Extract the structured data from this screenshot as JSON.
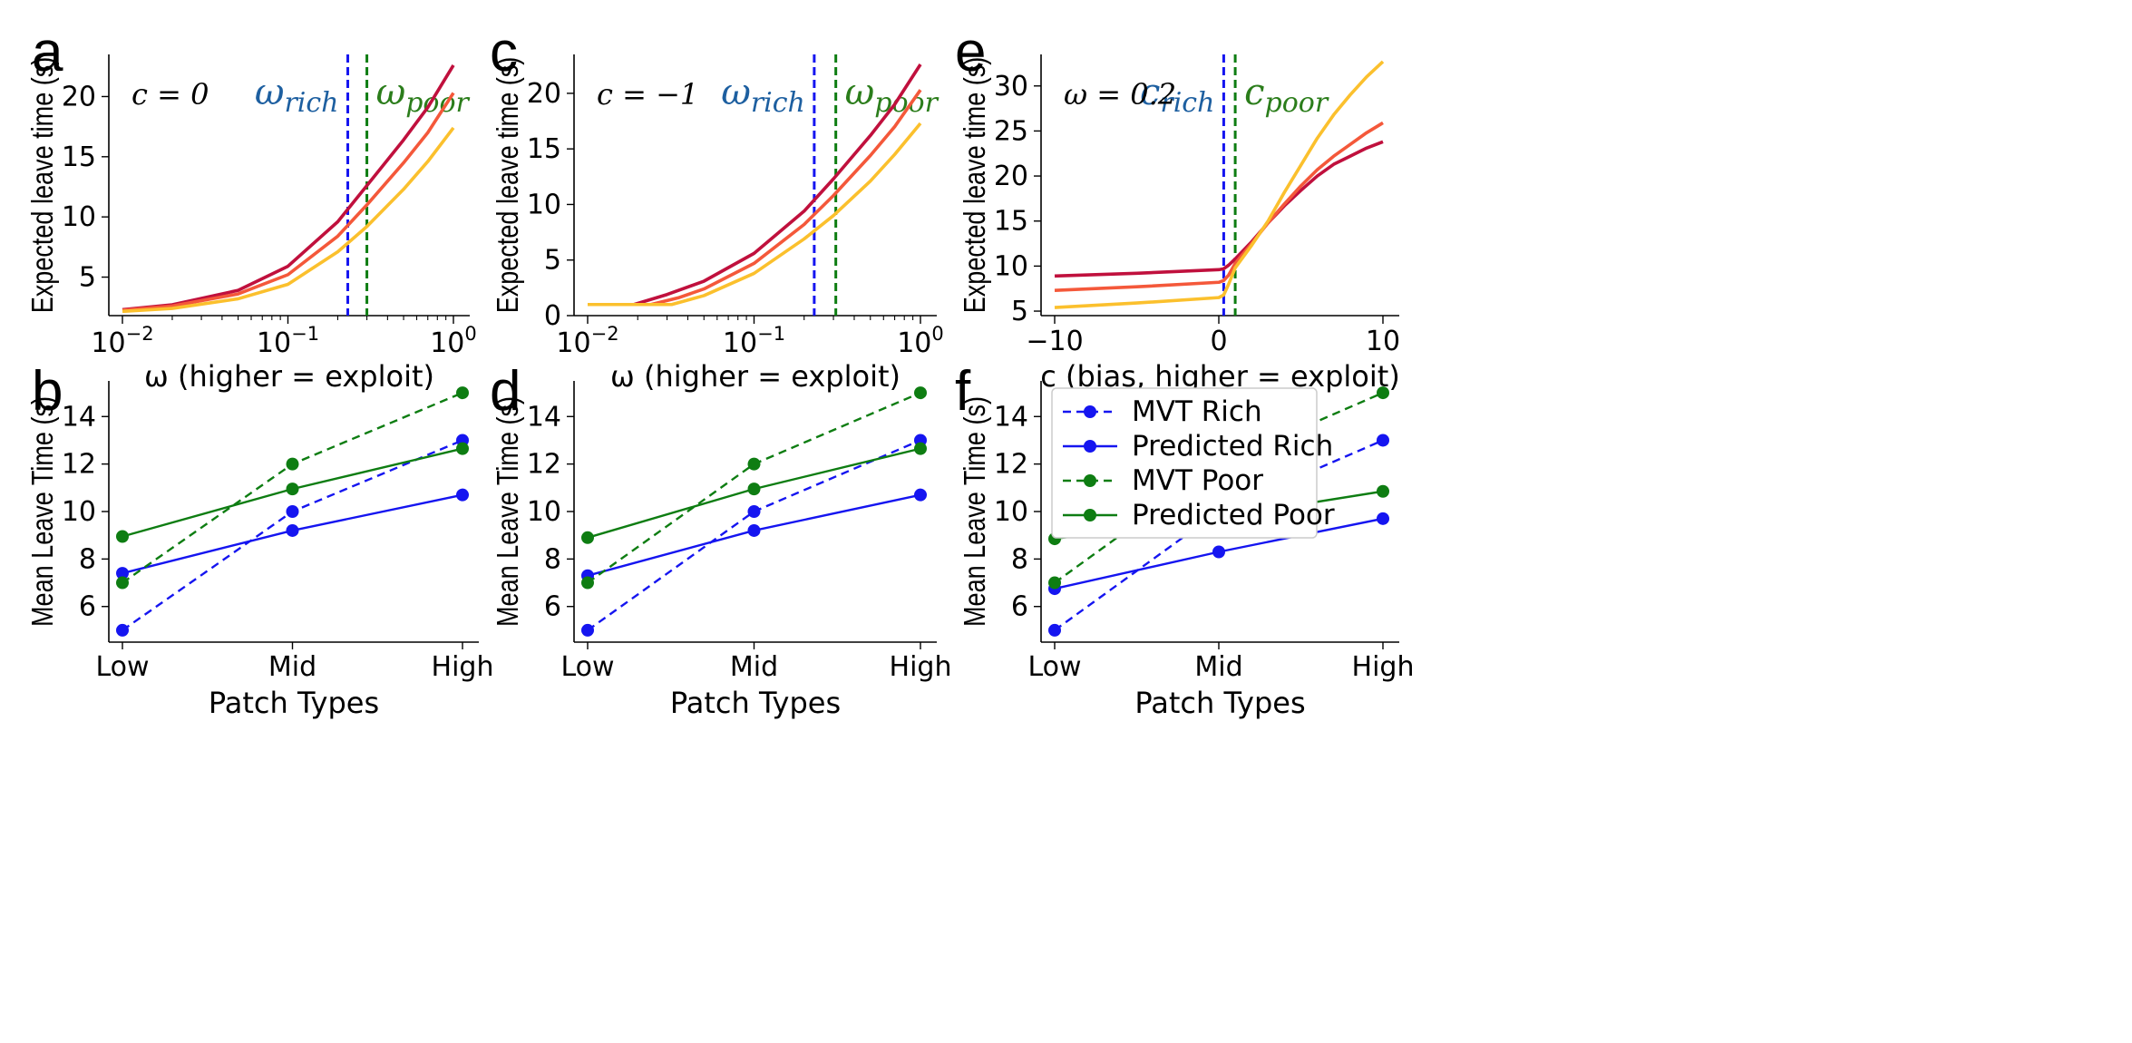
{
  "colors": {
    "dark": "#c0103d",
    "mid": "#f4583a",
    "light": "#fbc02d",
    "blue": "#1515f0",
    "green": "#0e7d12",
    "ann_blue": "#1d5fa0",
    "ann_green": "#2b7d1b"
  },
  "chart_data": [
    {
      "id": "a",
      "type": "line",
      "panel_letter": "a",
      "xlabel": "ω (higher = exploit)",
      "ylabel": "Expected leave time (s)",
      "xscale": "log",
      "xlim": [
        0.01,
        1
      ],
      "ylim": [
        1.8,
        23.5
      ],
      "xticks": [
        {
          "v": 0.01,
          "base": "10",
          "exp": "−2"
        },
        {
          "v": 0.1,
          "base": "10",
          "exp": "−1"
        },
        {
          "v": 1,
          "base": "10",
          "exp": "0"
        }
      ],
      "yticks": [
        5,
        10,
        15,
        20
      ],
      "annotation": "c = 0",
      "vlines": [
        {
          "x": 0.23,
          "color": "blue",
          "label": "rich",
          "symbol": "ω"
        },
        {
          "x": 0.3,
          "color": "green",
          "label": "poor",
          "symbol": "ω"
        }
      ],
      "series": [
        {
          "color": "dark",
          "x": [
            0.01,
            0.02,
            0.05,
            0.1,
            0.2,
            0.3,
            0.5,
            0.7,
            1.0
          ],
          "y": [
            2.3,
            2.7,
            3.9,
            5.9,
            9.6,
            12.6,
            16.4,
            19.1,
            22.6
          ]
        },
        {
          "color": "mid",
          "x": [
            0.01,
            0.02,
            0.05,
            0.1,
            0.2,
            0.3,
            0.5,
            0.7,
            1.0
          ],
          "y": [
            2.25,
            2.6,
            3.6,
            5.2,
            8.4,
            11.0,
            14.5,
            17.0,
            20.3
          ]
        },
        {
          "color": "light",
          "x": [
            0.01,
            0.02,
            0.05,
            0.1,
            0.2,
            0.3,
            0.5,
            0.7,
            1.0
          ],
          "y": [
            2.15,
            2.4,
            3.2,
            4.4,
            7.1,
            9.2,
            12.3,
            14.6,
            17.4
          ]
        }
      ]
    },
    {
      "id": "c",
      "type": "line",
      "panel_letter": "c",
      "xlabel": "ω (higher = exploit)",
      "ylabel": "Expected leave time (s)",
      "xscale": "log",
      "xlim": [
        0.01,
        1
      ],
      "ylim": [
        0,
        23.5
      ],
      "xticks": [
        {
          "v": 0.01,
          "base": "10",
          "exp": "−2"
        },
        {
          "v": 0.1,
          "base": "10",
          "exp": "−1"
        },
        {
          "v": 1,
          "base": "10",
          "exp": "0"
        }
      ],
      "yticks": [
        0,
        5,
        10,
        15,
        20
      ],
      "annotation": "c = −1",
      "vlines": [
        {
          "x": 0.23,
          "color": "blue",
          "label": "rich",
          "symbol": "ω"
        },
        {
          "x": 0.31,
          "color": "green",
          "label": "poor",
          "symbol": "ω"
        }
      ],
      "series": [
        {
          "color": "dark",
          "x": [
            0.01,
            0.019,
            0.03,
            0.05,
            0.1,
            0.2,
            0.3,
            0.5,
            0.7,
            1.0
          ],
          "y": [
            1.0,
            1.0,
            1.9,
            3.1,
            5.6,
            9.4,
            12.3,
            16.2,
            19.0,
            22.6
          ]
        },
        {
          "color": "mid",
          "x": [
            0.01,
            0.024,
            0.035,
            0.05,
            0.1,
            0.2,
            0.3,
            0.5,
            0.7,
            1.0
          ],
          "y": [
            1.0,
            1.0,
            1.6,
            2.4,
            4.7,
            8.2,
            10.8,
            14.4,
            17.0,
            20.3
          ]
        },
        {
          "color": "light",
          "x": [
            0.01,
            0.032,
            0.05,
            0.1,
            0.2,
            0.3,
            0.5,
            0.7,
            1.0
          ],
          "y": [
            1.0,
            1.0,
            1.8,
            3.8,
            6.9,
            9.0,
            12.1,
            14.5,
            17.3
          ]
        }
      ]
    },
    {
      "id": "e",
      "type": "line",
      "panel_letter": "e",
      "xlabel": "c (bias, higher = exploit)",
      "ylabel": "Expected leave time (s)",
      "xscale": "linear",
      "xlim": [
        -10,
        10
      ],
      "ylim": [
        4.5,
        33.5
      ],
      "xticks": [
        {
          "v": -10,
          "label": "−10"
        },
        {
          "v": 0,
          "label": "0"
        },
        {
          "v": 10,
          "label": "10"
        }
      ],
      "yticks": [
        5,
        10,
        15,
        20,
        25,
        30
      ],
      "annotation": "ω = 0.2",
      "vlines": [
        {
          "x": 0.3,
          "color": "blue",
          "label": "rich",
          "symbol": "c"
        },
        {
          "x": 1.0,
          "color": "green",
          "label": "poor",
          "symbol": "c"
        }
      ],
      "series": [
        {
          "color": "dark",
          "x": [
            -10,
            -5,
            0,
            0.3,
            0.6,
            1.0,
            2,
            3,
            4,
            5,
            6,
            7,
            8,
            9,
            10
          ],
          "y": [
            8.9,
            9.2,
            9.6,
            9.7,
            10.1,
            10.8,
            12.7,
            14.8,
            16.7,
            18.4,
            20.0,
            21.3,
            22.2,
            23.1,
            23.8
          ]
        },
        {
          "color": "mid",
          "x": [
            -10,
            -5,
            0,
            0.3,
            0.6,
            1.0,
            2,
            3,
            4,
            5,
            6,
            7,
            8,
            9,
            10
          ],
          "y": [
            7.3,
            7.7,
            8.2,
            8.4,
            9.0,
            10.3,
            12.5,
            14.8,
            16.9,
            18.9,
            20.7,
            22.2,
            23.5,
            24.8,
            25.9
          ]
        },
        {
          "color": "light",
          "x": [
            -10,
            -5,
            0,
            0.3,
            0.6,
            1.0,
            2,
            3,
            4,
            5,
            6,
            7,
            8,
            9,
            10
          ],
          "y": [
            5.4,
            5.9,
            6.5,
            6.8,
            8.0,
            9.8,
            12.3,
            15.0,
            18.2,
            21.2,
            24.2,
            26.8,
            29.0,
            31.0,
            32.7
          ]
        }
      ]
    },
    {
      "id": "b",
      "type": "line",
      "panel_letter": "b",
      "xlabel": "Patch Types",
      "ylabel": "Mean Leave Time (s)",
      "categories": [
        "Low",
        "Mid",
        "High"
      ],
      "ylim": [
        4.5,
        15.5
      ],
      "yticks": [
        6,
        8,
        10,
        12,
        14
      ],
      "series": [
        {
          "name": "MVT Rich",
          "color": "blue",
          "dashed": true,
          "values": [
            5.0,
            10.0,
            13.0
          ]
        },
        {
          "name": "Predicted Rich",
          "color": "blue",
          "dashed": false,
          "values": [
            7.4,
            9.2,
            10.7
          ]
        },
        {
          "name": "MVT Poor",
          "color": "green",
          "dashed": true,
          "values": [
            7.0,
            12.0,
            15.0
          ]
        },
        {
          "name": "Predicted Poor",
          "color": "green",
          "dashed": false,
          "values": [
            8.95,
            10.95,
            12.65
          ]
        }
      ]
    },
    {
      "id": "d",
      "type": "line",
      "panel_letter": "d",
      "xlabel": "Patch Types",
      "ylabel": "Mean Leave Time (s)",
      "categories": [
        "Low",
        "Mid",
        "High"
      ],
      "ylim": [
        4.5,
        15.5
      ],
      "yticks": [
        6,
        8,
        10,
        12,
        14
      ],
      "series": [
        {
          "name": "MVT Rich",
          "color": "blue",
          "dashed": true,
          "values": [
            5.0,
            10.0,
            13.0
          ]
        },
        {
          "name": "Predicted Rich",
          "color": "blue",
          "dashed": false,
          "values": [
            7.3,
            9.2,
            10.7
          ]
        },
        {
          "name": "MVT Poor",
          "color": "green",
          "dashed": true,
          "values": [
            7.0,
            12.0,
            15.0
          ]
        },
        {
          "name": "Predicted Poor",
          "color": "green",
          "dashed": false,
          "values": [
            8.9,
            10.95,
            12.65
          ]
        }
      ]
    },
    {
      "id": "f",
      "type": "line",
      "panel_letter": "f",
      "xlabel": "Patch Types",
      "ylabel": "Mean Leave Time (s)",
      "categories": [
        "Low",
        "Mid",
        "High"
      ],
      "ylim": [
        4.5,
        15.5
      ],
      "yticks": [
        6,
        8,
        10,
        12,
        14
      ],
      "legend": "top-left",
      "series": [
        {
          "name": "MVT Rich",
          "color": "blue",
          "dashed": true,
          "values": [
            5.0,
            10.0,
            13.0
          ]
        },
        {
          "name": "Predicted Rich",
          "color": "blue",
          "dashed": false,
          "values": [
            6.75,
            8.3,
            9.7
          ]
        },
        {
          "name": "MVT Poor",
          "color": "green",
          "dashed": true,
          "values": [
            7.0,
            12.0,
            15.0
          ]
        },
        {
          "name": "Predicted Poor",
          "color": "green",
          "dashed": false,
          "values": [
            8.85,
            9.75,
            10.85
          ]
        }
      ]
    }
  ]
}
